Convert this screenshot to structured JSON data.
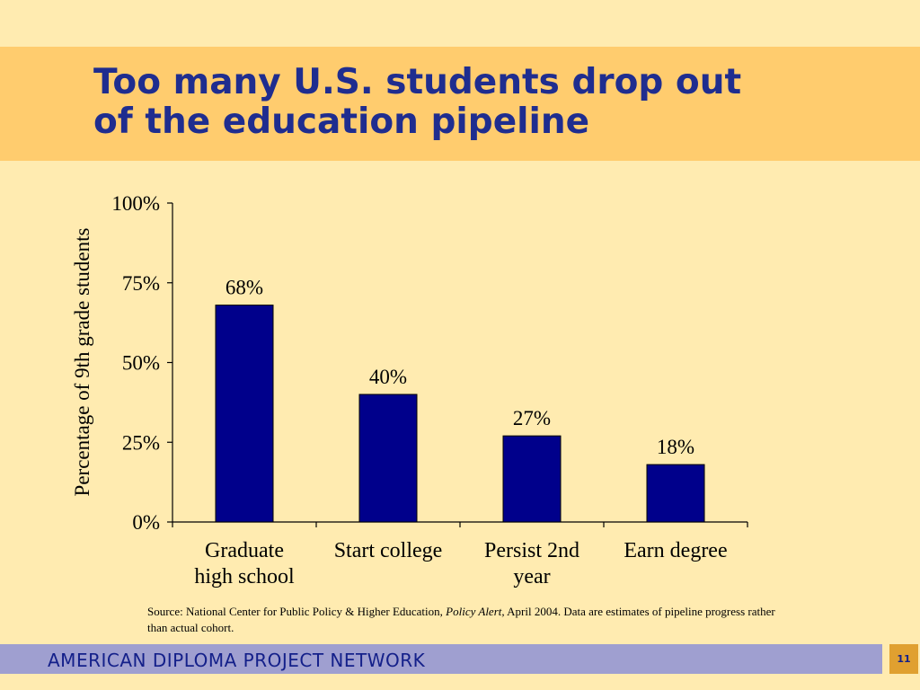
{
  "slide": {
    "title_line1": "Too many U.S. students drop out",
    "title_line2": "of the education pipeline",
    "source": {
      "prefix": "Source: National Center for Public Policy & Higher Education, ",
      "publication": "Policy Alert,",
      "suffix": " April 2004. Data are estimates of pipeline progress rather than actual cohort."
    },
    "footer": "AMERICAN DIPLOMA PROJECT NETWORK",
    "page_number": "11"
  },
  "colors": {
    "background": "#FFEBB0",
    "title_band": "#FFCC6E",
    "title_text": "#1F2D8F",
    "bar_fill": "#00008B",
    "footer_bar": "#9F9FD0",
    "page_badge": "#E0A030"
  },
  "chart_data": {
    "type": "bar",
    "categories": [
      [
        "Graduate",
        "high school"
      ],
      [
        "Start college"
      ],
      [
        "Persist 2nd",
        "year"
      ],
      [
        "Earn degree"
      ]
    ],
    "values": [
      68,
      40,
      27,
      18
    ],
    "data_labels": [
      "68%",
      "40%",
      "27%",
      "18%"
    ],
    "ylabel": "Percentage of 9th grade students",
    "xlabel": "",
    "ylim": [
      0,
      100
    ],
    "yticks": [
      0,
      25,
      50,
      75,
      100
    ],
    "ytick_labels": [
      "0%",
      "25%",
      "50%",
      "75%",
      "100%"
    ],
    "grid": false,
    "legend": "none"
  }
}
